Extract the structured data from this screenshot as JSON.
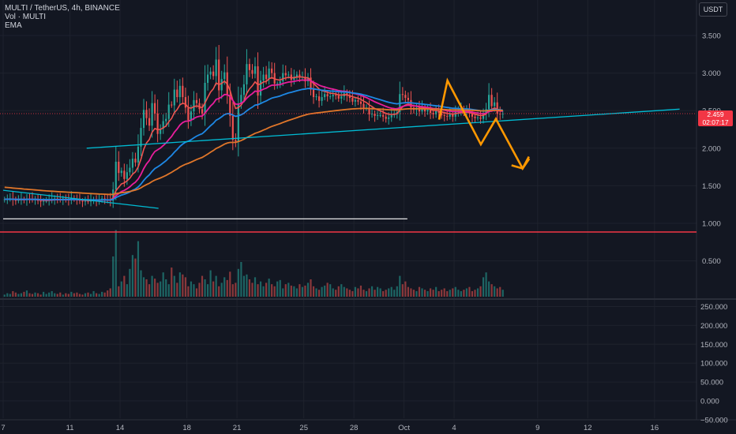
{
  "legend": {
    "symbol": "MULTI / TetherUS, 4h, BINANCE",
    "volume": "Vol · MULTI",
    "indicator": "EMA"
  },
  "currency_button": "USDT",
  "price_tag": {
    "price": "2.459",
    "countdown": "02:07:17"
  },
  "colors": {
    "background": "#131722",
    "up": "#26a69a",
    "down": "#ef5350",
    "ema_fast": "#ef5350",
    "ema_mid": "#e91e9c",
    "ema_slow": "#1e88e5",
    "ema_long": "#e0762a",
    "trendline": "#00bcd4",
    "forecast": "#ff9800",
    "support_red": "#f23645",
    "support_white": "#ffffff"
  },
  "chart_data": {
    "type": "candlestick",
    "price_axis": {
      "ticks": [
        "3.500",
        "3.000",
        "2.500",
        "2.000",
        "1.500",
        "1.000",
        "0.500"
      ],
      "values": [
        3.5,
        3.0,
        2.5,
        2.0,
        1.5,
        1.0,
        0.5
      ],
      "range": [
        0.0,
        3.9
      ]
    },
    "volume_axis": {
      "ticks": [
        "250.000",
        "200.000",
        "150.000",
        "100.000",
        "50.000",
        "0.000",
        "−50.000"
      ],
      "values": [
        250000,
        200000,
        150000,
        100000,
        50000,
        0,
        -50000
      ]
    },
    "x_axis": {
      "ticks": [
        "7",
        "11",
        "14",
        "18",
        "21",
        "25",
        "28",
        "Oct",
        "4",
        "9",
        "12",
        "16"
      ],
      "day_index": [
        0,
        4,
        7,
        11,
        14,
        18,
        21,
        24,
        27,
        32,
        35,
        39
      ]
    },
    "candles_start_day": 0,
    "candles_per_day": 6,
    "close_series": [
      1.32,
      1.33,
      1.33,
      1.31,
      1.3,
      1.31,
      1.32,
      1.31,
      1.33,
      1.32,
      1.31,
      1.32,
      1.3,
      1.29,
      1.3,
      1.3,
      1.31,
      1.32,
      1.33,
      1.32,
      1.31,
      1.33,
      1.32,
      1.31,
      1.33,
      1.32,
      1.31,
      1.3,
      1.29,
      1.3,
      1.29,
      1.3,
      1.31,
      1.3,
      1.31,
      1.33,
      1.32,
      1.31,
      1.3,
      1.45,
      1.82,
      1.67,
      1.7,
      1.59,
      1.68,
      1.74,
      1.86,
      1.81,
      2.02,
      2.27,
      2.51,
      2.4,
      2.3,
      2.6,
      2.46,
      2.19,
      2.26,
      2.36,
      2.39,
      2.58,
      2.57,
      2.78,
      2.68,
      2.83,
      2.68,
      2.54,
      2.37,
      2.49,
      2.64,
      2.6,
      2.52,
      2.46,
      2.87,
      2.98,
      3.02,
      2.96,
      3.18,
      2.77,
      2.92,
      3.01,
      2.71,
      2.43,
      2.11,
      2.09,
      2.59,
      2.71,
      2.85,
      3.12,
      3.04,
      2.99,
      3.09,
      2.7,
      2.9,
      2.98,
      2.92,
      3.06,
      3.0,
      2.86,
      2.86,
      2.89,
      3.0,
      2.97,
      2.98,
      2.91,
      2.95,
      2.98,
      2.95,
      2.95,
      2.89,
      2.94,
      2.78,
      2.68,
      2.69,
      2.63,
      2.68,
      2.72,
      2.69,
      2.69,
      2.71,
      2.7,
      2.66,
      2.69,
      2.73,
      2.7,
      2.67,
      2.62,
      2.64,
      2.62,
      2.59,
      2.53,
      2.54,
      2.45,
      2.46,
      2.43,
      2.44,
      2.44,
      2.42,
      2.39,
      2.41,
      2.44,
      2.46,
      2.48,
      2.72,
      2.71,
      2.67,
      2.64,
      2.54,
      2.51,
      2.54,
      2.49,
      2.53,
      2.49,
      2.51,
      2.47,
      2.45,
      2.5,
      2.47,
      2.44,
      2.43,
      2.42,
      2.45,
      2.42,
      2.49,
      2.49,
      2.51,
      2.47,
      2.5,
      2.46,
      2.42,
      2.4,
      2.41,
      2.39,
      2.46,
      2.52,
      2.71,
      2.56,
      2.61,
      2.46,
      2.45,
      2.46
    ],
    "volume_series": [
      3,
      5,
      4,
      8,
      6,
      4,
      5,
      7,
      9,
      5,
      4,
      6,
      5,
      3,
      7,
      4,
      6,
      8,
      5,
      4,
      6,
      3,
      5,
      4,
      7,
      5,
      6,
      4,
      3,
      5,
      6,
      4,
      8,
      5,
      4,
      7,
      6,
      9,
      12,
      58,
      96,
      15,
      22,
      30,
      18,
      40,
      60,
      55,
      80,
      38,
      28,
      25,
      18,
      30,
      26,
      20,
      22,
      35,
      25,
      18,
      42,
      30,
      20,
      35,
      32,
      28,
      15,
      22,
      18,
      12,
      20,
      30,
      25,
      18,
      38,
      22,
      30,
      15,
      20,
      28,
      24,
      36,
      18,
      20,
      40,
      50,
      30,
      32,
      25,
      20,
      28,
      18,
      22,
      15,
      20,
      26,
      18,
      15,
      22,
      24,
      12,
      18,
      20,
      16,
      15,
      12,
      18,
      14,
      16,
      20,
      25,
      15,
      12,
      10,
      14,
      16,
      20,
      18,
      12,
      10,
      15,
      18,
      14,
      12,
      10,
      8,
      14,
      12,
      16,
      10,
      8,
      12,
      15,
      10,
      14,
      12,
      8,
      10,
      12,
      14,
      10,
      15,
      30,
      18,
      22,
      14,
      12,
      10,
      8,
      14,
      12,
      10,
      8,
      12,
      10,
      14,
      8,
      10,
      12,
      8,
      10,
      12,
      14,
      10,
      8,
      10,
      12,
      14,
      8,
      10,
      12,
      15,
      28,
      35,
      22,
      18,
      15,
      12,
      14,
      10
    ],
    "emas": [
      {
        "name": "EMA",
        "role": "fast"
      },
      {
        "name": "EMA",
        "role": "mid"
      },
      {
        "name": "EMA",
        "role": "slow"
      },
      {
        "name": "EMA",
        "role": "long"
      }
    ],
    "drawings": {
      "trendline_rising": {
        "from": [
          5.0,
          2.0
        ],
        "to": [
          40.5,
          2.52
        ]
      },
      "trendline_falling": {
        "from": [
          0.0,
          1.44
        ],
        "to": [
          9.3,
          1.2
        ]
      },
      "support_white": {
        "price": 1.06,
        "from_day": 0,
        "to_day": 24.2
      },
      "support_red": {
        "price": 0.885
      },
      "forecast_path": [
        [
          26.1,
          2.38
        ],
        [
          26.6,
          2.9
        ],
        [
          28.6,
          2.05
        ],
        [
          29.5,
          2.39
        ],
        [
          31.1,
          1.73
        ],
        [
          31.5,
          1.86
        ]
      ]
    }
  }
}
